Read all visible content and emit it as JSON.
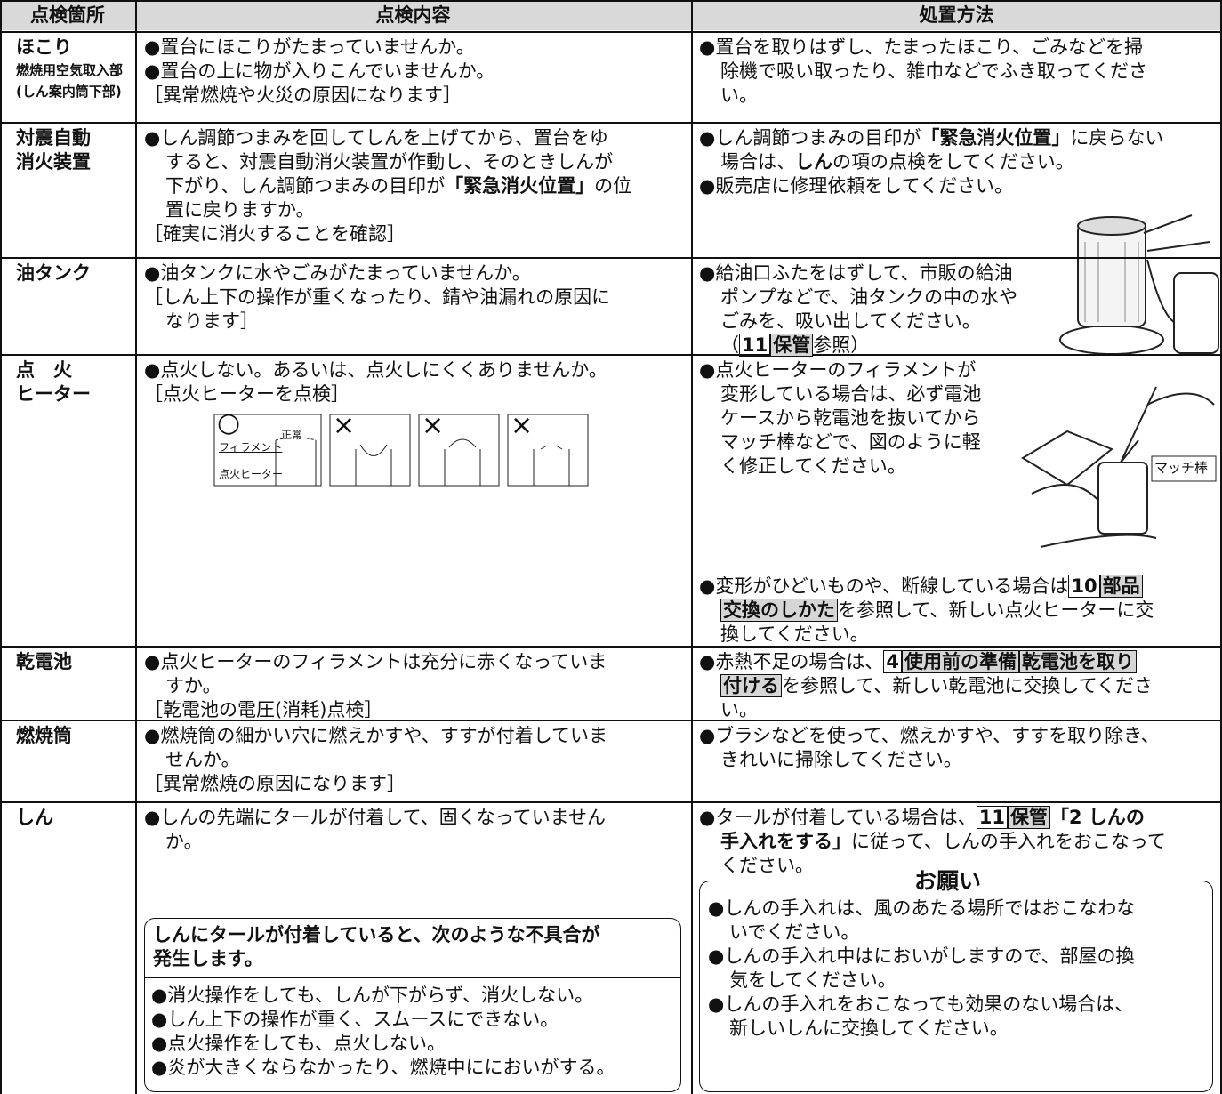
{
  "table": {
    "header": [
      "点検箇所",
      "点検内容",
      "処置方法"
    ],
    "rows": [
      {
        "place": [
          "ほこり",
          "燃焼用空気取入部",
          "(しん案内筒下部)"
        ],
        "check": [
          "●置台にほこりがたまっていませんか。",
          "●置台の上に物が入りこんでいませんか。",
          "［異常燃焼や火災の原因になります］"
        ],
        "action": [
          "●置台を取りはずし、たまったほこり、ごみなどを掃",
          "除機で吸い取ったり、雑巾などでふき取ってくださ",
          "い。"
        ]
      },
      {
        "place": [
          "対震自動",
          "消火装置"
        ],
        "check": [
          "●しん調節つまみを回してしんを上げてから、置台をゆ",
          "すると、対震自動消火装置が作動し、そのときしんが",
          [
            "下がり、しん調節つまみの目印が",
            "「緊急消火位置」",
            "の位"
          ],
          "置に戻りますか。",
          "［確実に消火することを確認］"
        ],
        "action": [
          [
            "●しん調節つまみの目印が",
            "「緊急消火位置」",
            "に戻らない"
          ],
          [
            "場合は、",
            "しん",
            "の項の点検をしてください。"
          ],
          "●販売店に修理依頼をしてください。"
        ]
      },
      {
        "place": [
          "油タンク"
        ],
        "check": [
          "●油タンクに水やごみがたまっていませんか。",
          "［しん上下の操作が重くなったり、錆や油漏れの原因に",
          "なります］"
        ],
        "action": [
          "●給油口ふたをはずして、市販の給油",
          "ポンプなどで、油タンクの中の水や",
          "ごみを、吸い出してください。",
          [
            "（",
            "11",
            "保管",
            "参照）"
          ]
        ]
      },
      {
        "place": [
          "点　火",
          "ヒーター"
        ],
        "check": [
          "●点火しない。あるいは、点火しにくくありませんか。",
          "［点火ヒーターを点検］"
        ],
        "check_figure": {
          "ok_mark": "○",
          "filament": "フィラメント",
          "normal": "正常",
          "heater": "点火ヒーター",
          "ng_marks": [
            "×",
            "×",
            "×"
          ]
        },
        "action": [
          "●点火ヒーターのフィラメントが",
          "変形している場合は、必ず電池",
          "ケースから乾電池を抜いてから",
          "マッチ棒などで、図のように軽",
          "く修正してください。"
        ],
        "action_figure_label": "マッチ棒",
        "action_more": [
          [
            "●変形がひどいものや、断線している場合は",
            "10",
            "部品"
          ],
          [
            "交換のしかた",
            "を参照して、新しい点火ヒーターに交"
          ],
          "換してください。"
        ]
      },
      {
        "place": [
          "乾電池"
        ],
        "check": [
          "●点火ヒーターのフィラメントは充分に赤くなっていま",
          "すか。",
          "［乾電池の電圧(消耗)点検］"
        ],
        "action": [
          [
            "●赤熱不足の場合は、",
            "4",
            "使用前の準備",
            "乾電池を取り"
          ],
          [
            "付ける",
            "を参照して、新しい乾電池に交換してくださ"
          ],
          "い。"
        ]
      },
      {
        "place": [
          "燃焼筒"
        ],
        "check": [
          "●燃焼筒の細かい穴に燃えかすや、すすが付着していま",
          "せんか。",
          "［異常燃焼の原因になります］"
        ],
        "action": [
          "●ブラシなどを使って、燃えかすや、すすを取り除き、",
          "きれいに掃除してください。"
        ]
      },
      {
        "place": [
          "しん"
        ],
        "check": [
          "●しんの先端にタールが付着して、固くなっていません",
          "か。"
        ],
        "check_box": {
          "title": [
            "しんにタールが付着していると、次のような不具合が",
            "発生します。"
          ],
          "items": [
            "●消火操作をしても、しんが下がらず、消火しない。",
            "●しん上下の操作が重く、スムースにできない。",
            "●点火操作をしても、点火しない。",
            "●炎が大きくならなかったり、燃焼中ににおいがする。"
          ]
        },
        "action": [
          [
            "●タールが付着している場合は、",
            "11",
            "保管",
            "「2 しんの"
          ],
          [
            "手入れをする」",
            "に従って、しんの手入れをおこなって"
          ],
          "ください。"
        ],
        "action_note": {
          "title": "お願い",
          "items": [
            "●しんの手入れは、風のあたる場所ではおこなわな",
            "いでください。",
            "●しんの手入れ中はにおいがしますので、部屋の換",
            "気をしてください。",
            "●しんの手入れをおこなっても効果のない場合は、",
            "新しいしんに交換してください。"
          ]
        }
      }
    ]
  }
}
